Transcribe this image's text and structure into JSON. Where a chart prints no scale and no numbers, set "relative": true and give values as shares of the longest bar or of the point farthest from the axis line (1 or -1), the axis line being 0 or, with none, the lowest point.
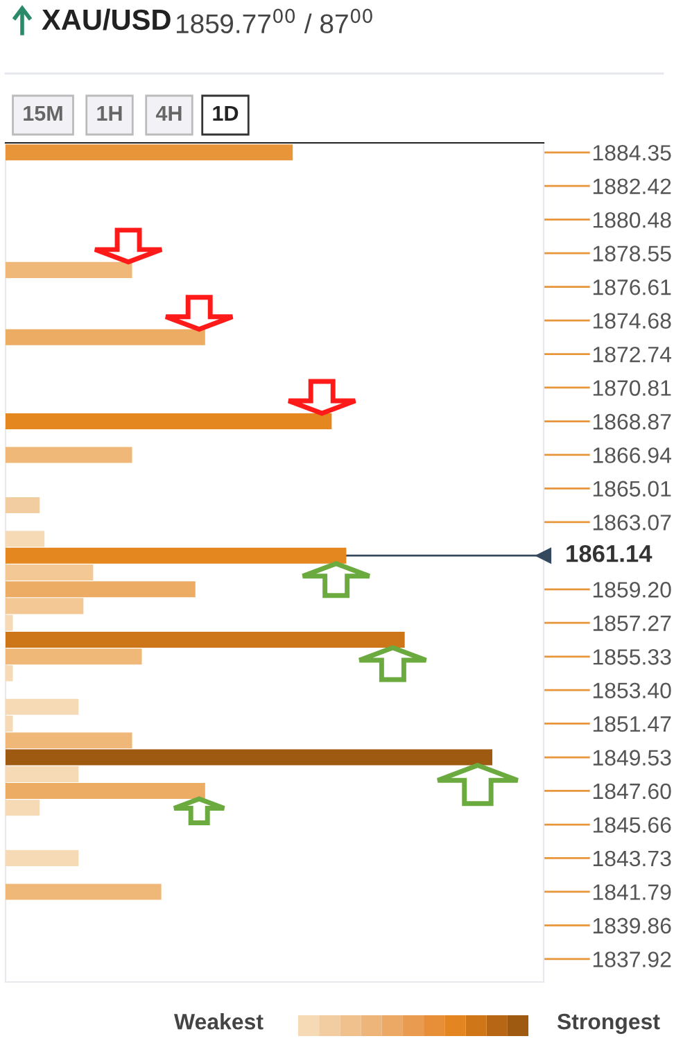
{
  "chart_data": {
    "type": "bar",
    "orientation": "horizontal",
    "relative": true,
    "title": "XAU/USD",
    "subtitle": "1859.77$^{00}$ / 87$^{00}$",
    "annotations": [
      "15M",
      "1H",
      "4H",
      "1D",
      "Weakest",
      "Strongest"
    ],
    "x": [
      1884.35,
      1877.58,
      1873.71,
      1868.87,
      1866.94,
      1864.04,
      1862.11,
      1861.14,
      1860.17,
      1859.2,
      1858.24,
      1857.27,
      1856.3,
      1855.33,
      1854.37,
      1852.44,
      1851.47,
      1850.5,
      1849.53,
      1848.56,
      1847.6,
      1846.63,
      1843.73,
      1841.79
    ],
    "values": [
      0.59,
      0.26,
      0.41,
      0.67,
      0.26,
      0.07,
      0.08,
      0.7,
      0.18,
      0.39,
      0.16,
      0.015,
      0.82,
      0.28,
      0.015,
      0.15,
      0.015,
      0.26,
      1,
      0.15,
      0.41,
      0.07,
      0.15,
      0.32
    ],
    "colors": [
      "#e8953a",
      "#efb878",
      "#ecac64",
      "#e3871e",
      "#efb878",
      "#f3cda2",
      "#f6d9b5",
      "#e3871e",
      "#f3c895",
      "#ecac64",
      "#f3c895",
      "#f6d9b5",
      "#cd7619",
      "#efb878",
      "#f6d9b5",
      "#f6d9b5",
      "#f6d9b5",
      "#efb878",
      "#9f5a12",
      "#f6d9b5",
      "#ecac64",
      "#f6d9b5",
      "#f6d9b5",
      "#efb878"
    ],
    "ylim": [
      1836.6,
      1884.9
    ],
    "yticks": [
      1884.35,
      1882.42,
      1880.48,
      1878.55,
      1876.61,
      1874.68,
      1872.74,
      1870.81,
      1868.87,
      1866.94,
      1865.01,
      1863.07,
      {
        "value": 1859.2,
        "label": "1859.20"
      },
      1857.27,
      1855.33,
      {
        "value": 1853.4,
        "label": "1853.40"
      },
      1851.47,
      1849.53,
      {
        "value": 1847.6,
        "label": "1847.60"
      },
      1845.66,
      1843.73,
      1841.79,
      1839.86,
      1837.92
    ],
    "ref_lines": [
      {
        "axis": "y",
        "value": 1861.14,
        "label": "1861.14",
        "color": "#34495e"
      }
    ],
    "grid": false
  }
}
